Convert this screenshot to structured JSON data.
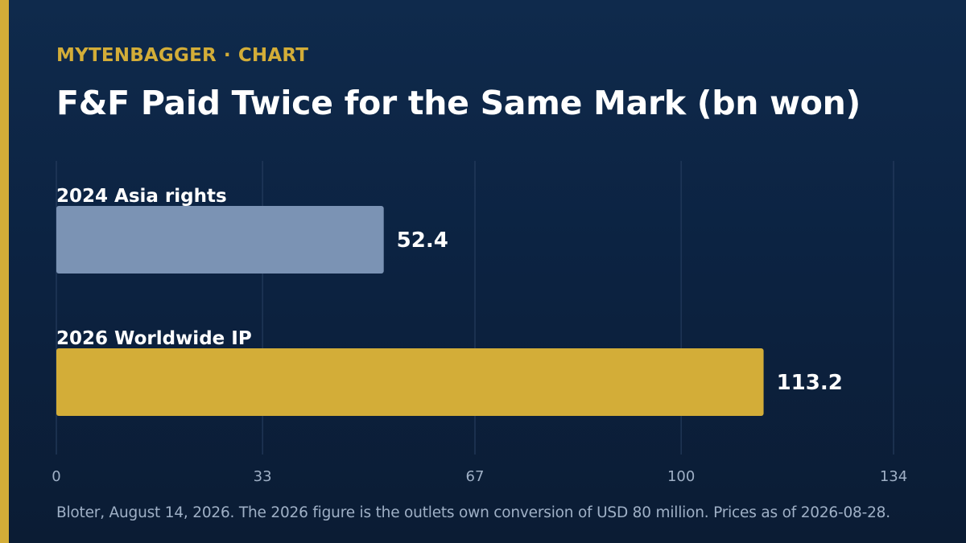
{
  "header": {
    "brand": "MYTENBAGGER",
    "separator": "·",
    "section": "CHART"
  },
  "source_note": "Bloter, August 14, 2026. The 2026 figure is the outlets own conversion of USD 80 million. Prices as of 2026-08-28.",
  "colors": {
    "accent": "#d3ad38",
    "bar_2024": "#7b93b4",
    "bar_2026": "#d3ad38",
    "grid": "#2a4163",
    "tick": "#9fb0c6",
    "label": "#ffffff"
  },
  "chart_data": {
    "type": "bar",
    "orientation": "horizontal",
    "title": "F&F Paid Twice for the Same Mark (bn won)",
    "categories": [
      "2024 Asia rights",
      "2026 Worldwide IP"
    ],
    "values": [
      52.4,
      113.2
    ],
    "value_labels": [
      "52.4",
      "113.2"
    ],
    "x_ticks": [
      0,
      33,
      67,
      100,
      134
    ],
    "xlim": [
      0,
      134
    ],
    "grid": true,
    "legend": "none"
  }
}
